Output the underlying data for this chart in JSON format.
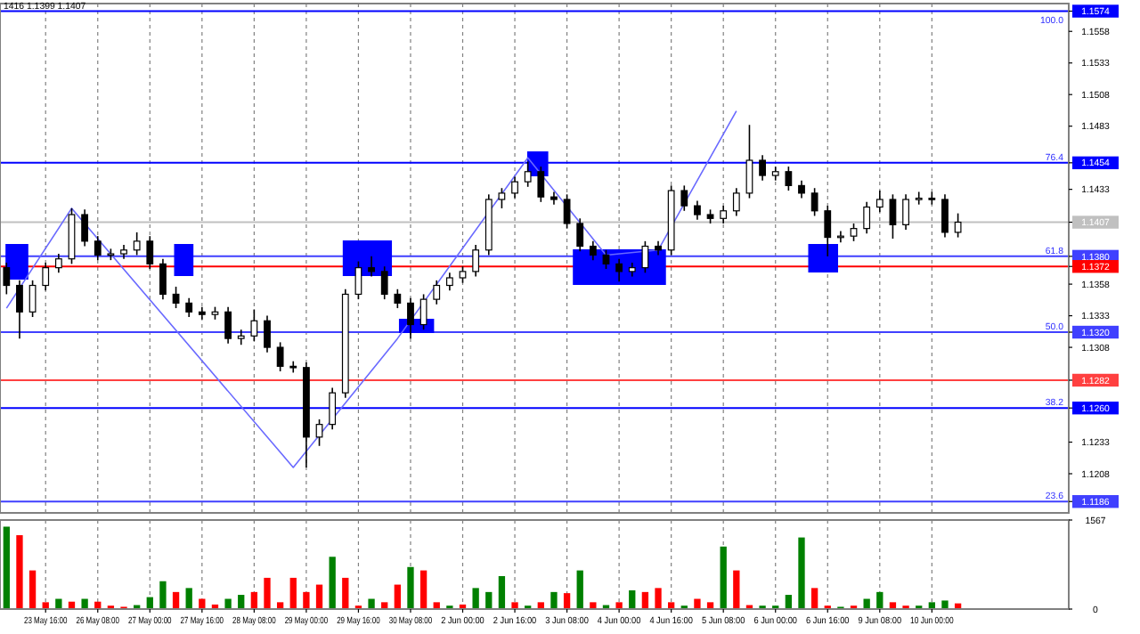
{
  "chart_data": [
    {
      "type": "candlestick",
      "title": "1416 1.1399 1.1407",
      "color": "#000000",
      "categories": [
        null,
        null,
        null,
        null,
        null,
        null,
        null,
        null,
        null,
        null,
        null,
        null,
        null,
        null,
        null,
        null,
        null,
        null,
        null,
        null,
        null,
        null,
        null,
        null,
        null,
        null,
        null,
        null,
        null,
        null,
        null,
        null,
        null,
        null,
        null,
        null,
        null,
        null,
        null,
        null,
        null,
        null,
        null,
        null,
        null,
        null,
        null,
        null,
        null,
        null,
        null,
        null,
        null,
        null,
        null,
        null,
        null,
        null,
        null,
        null,
        null,
        null,
        null,
        null,
        null,
        null,
        null,
        null,
        null,
        null,
        null,
        null,
        null,
        null,
        null,
        null,
        null,
        null,
        null,
        null,
        null,
        null
      ],
      "ohlc": [
        [
          1.1371,
          1.1375,
          1.135,
          1.1357
        ],
        [
          1.1357,
          1.1361,
          1.1315,
          1.1336
        ],
        [
          1.1336,
          1.1361,
          1.1332,
          1.1357
        ],
        [
          1.1357,
          1.1375,
          1.1353,
          1.1371
        ],
        [
          1.1371,
          1.1382,
          1.1367,
          1.1378
        ],
        [
          1.1378,
          1.1418,
          1.1374,
          1.1413
        ],
        [
          1.1413,
          1.1417,
          1.1388,
          1.1392
        ],
        [
          1.1392,
          1.1396,
          1.1377,
          1.1381
        ],
        [
          1.1381,
          1.1386,
          1.1377,
          1.1382
        ],
        [
          1.1382,
          1.1389,
          1.1378,
          1.1385
        ],
        [
          1.1385,
          1.1399,
          1.1381,
          1.1392
        ],
        [
          1.1392,
          1.1396,
          1.137,
          1.1374
        ],
        [
          1.1374,
          1.1378,
          1.1346,
          1.135
        ],
        [
          1.135,
          1.1356,
          1.1339,
          1.1343
        ],
        [
          1.1343,
          1.1347,
          1.1332,
          1.1336
        ],
        [
          1.1336,
          1.134,
          1.133,
          1.1334
        ],
        [
          1.1334,
          1.134,
          1.133,
          1.1336
        ],
        [
          1.1336,
          1.134,
          1.1311,
          1.1315
        ],
        [
          1.1315,
          1.1322,
          1.131,
          1.1317
        ],
        [
          1.1317,
          1.1338,
          1.1313,
          1.1329
        ],
        [
          1.1329,
          1.1333,
          1.1304,
          1.1308
        ],
        [
          1.1308,
          1.1312,
          1.1289,
          1.1293
        ],
        [
          1.1293,
          1.1297,
          1.1288,
          1.1292
        ],
        [
          1.1292,
          1.1296,
          1.1213,
          1.1237
        ],
        [
          1.1237,
          1.1251,
          1.123,
          1.1247
        ],
        [
          1.1247,
          1.1276,
          1.1243,
          1.1272
        ],
        [
          1.1272,
          1.1354,
          1.1268,
          1.135
        ],
        [
          1.135,
          1.1376,
          1.1346,
          1.1371
        ],
        [
          1.1371,
          1.138,
          1.1364,
          1.1368
        ],
        [
          1.1368,
          1.1372,
          1.1346,
          1.135
        ],
        [
          1.135,
          1.1354,
          1.1339,
          1.1343
        ],
        [
          1.1343,
          1.1347,
          1.1315,
          1.1326
        ],
        [
          1.1326,
          1.135,
          1.1322,
          1.1346
        ],
        [
          1.1346,
          1.1361,
          1.1342,
          1.1357
        ],
        [
          1.1357,
          1.1367,
          1.1353,
          1.1363
        ],
        [
          1.1363,
          1.1372,
          1.1359,
          1.1368
        ],
        [
          1.1368,
          1.1389,
          1.1364,
          1.1385
        ],
        [
          1.1385,
          1.1429,
          1.1381,
          1.1425
        ],
        [
          1.1425,
          1.1434,
          1.1418,
          1.143
        ],
        [
          1.143,
          1.1443,
          1.1426,
          1.1439
        ],
        [
          1.1439,
          1.1455,
          1.1435,
          1.1447
        ],
        [
          1.1447,
          1.1451,
          1.1423,
          1.1427
        ],
        [
          1.1427,
          1.1431,
          1.1421,
          1.1425
        ],
        [
          1.1425,
          1.1429,
          1.1402,
          1.1406
        ],
        [
          1.1406,
          1.141,
          1.1384,
          1.1388
        ],
        [
          1.1388,
          1.1392,
          1.1377,
          1.1381
        ],
        [
          1.1381,
          1.1385,
          1.137,
          1.1374
        ],
        [
          1.1374,
          1.1378,
          1.136,
          1.1368
        ],
        [
          1.1368,
          1.1375,
          1.1364,
          1.1371
        ],
        [
          1.1371,
          1.1392,
          1.1367,
          1.1388
        ],
        [
          1.1388,
          1.1392,
          1.1381,
          1.1385
        ],
        [
          1.1385,
          1.1436,
          1.1381,
          1.1432
        ],
        [
          1.1432,
          1.1436,
          1.1416,
          1.142
        ],
        [
          1.142,
          1.1424,
          1.1409,
          1.1413
        ],
        [
          1.1413,
          1.1417,
          1.1406,
          1.141
        ],
        [
          1.141,
          1.142,
          1.1406,
          1.1416
        ],
        [
          1.1416,
          1.1434,
          1.1412,
          1.143
        ],
        [
          1.143,
          1.1484,
          1.1426,
          1.1456
        ],
        [
          1.1456,
          1.146,
          1.144,
          1.1444
        ],
        [
          1.1444,
          1.1451,
          1.144,
          1.1447
        ],
        [
          1.1447,
          1.1451,
          1.1432,
          1.1436
        ],
        [
          1.1436,
          1.144,
          1.1426,
          1.143
        ],
        [
          1.143,
          1.1434,
          1.1412,
          1.1416
        ],
        [
          1.1416,
          1.142,
          1.138,
          1.1395
        ],
        [
          1.1395,
          1.14,
          1.1391,
          1.1396
        ],
        [
          1.1396,
          1.1406,
          1.1392,
          1.1402
        ],
        [
          1.1402,
          1.1423,
          1.1398,
          1.1419
        ],
        [
          1.1419,
          1.1432,
          1.1415,
          1.1425
        ],
        [
          1.1425,
          1.1429,
          1.1394,
          1.1405
        ],
        [
          1.1405,
          1.1429,
          1.1401,
          1.1425
        ],
        [
          1.1425,
          1.1431,
          1.1421,
          1.1426
        ],
        [
          1.1426,
          1.1431,
          1.1421,
          1.1425
        ],
        [
          1.1425,
          1.1429,
          1.1395,
          1.1399
        ],
        [
          1.1399,
          1.1414,
          1.1395,
          1.1407
        ],
        null,
        null,
        null,
        null,
        null,
        null,
        null,
        null
      ],
      "ylim": [
        1.1177,
        1.158
      ],
      "yticks": [
        {
          "value": 1.1574,
          "label": "1.1574"
        },
        1.1558,
        1.1533,
        1.1508,
        1.1483,
        {
          "value": 1.1454,
          "label": "1.1454"
        },
        1.1433,
        1.1407,
        {
          "value": 1.138,
          "label": "1.1380"
        },
        1.1372,
        1.1358,
        1.1333,
        {
          "value": 1.132,
          "label": "1.1320"
        },
        1.1308,
        1.1282,
        {
          "value": 1.126,
          "label": "1.1260"
        },
        1.1233,
        1.1208,
        1.1186
      ],
      "grid": "x",
      "tick_labels": "y",
      "ref_lines": [
        {
          "axis": "y",
          "value": 1.1574,
          "color": "#0000ff"
        },
        {
          "axis": "y",
          "value": 1.1454,
          "color": "#0000ff"
        },
        {
          "axis": "y",
          "value": 1.138,
          "color": "#4040ff"
        },
        {
          "axis": "y",
          "value": 1.132,
          "color": "#4040ff"
        },
        {
          "axis": "y",
          "value": 1.126,
          "color": "#0000ff"
        },
        {
          "axis": "y",
          "value": 1.1186,
          "color": "#4040ff"
        },
        {
          "axis": "y",
          "value": 1.1372,
          "color": "#ff0000"
        },
        {
          "axis": "y",
          "value": 1.1282,
          "color": "#ff4040"
        },
        {
          "axis": "y",
          "value": 1.1407,
          "color": "#c0c0c0"
        }
      ],
      "series": [
        {
          "type": "line",
          "color": "#6a6aff",
          "values": [
            1.1339,
            null,
            null,
            null,
            null,
            1.1418,
            null,
            null,
            null,
            null,
            null,
            null,
            null,
            null,
            null,
            null,
            null,
            null,
            null,
            null,
            null,
            null,
            1.1213,
            null,
            null,
            null,
            null,
            null,
            null,
            null,
            1.1315,
            null,
            null,
            null,
            null,
            null,
            null,
            null,
            null,
            null,
            1.1458,
            null,
            null,
            null,
            null,
            null,
            1.1381,
            null,
            null,
            null,
            1.1385,
            null,
            null,
            null,
            null,
            null,
            1.1495,
            null,
            null,
            null,
            null,
            null,
            null,
            null,
            null,
            null,
            null,
            null,
            null,
            null,
            null,
            null,
            null,
            null,
            null,
            null,
            null,
            null,
            null,
            null,
            null,
            null
          ]
        }
      ],
      "annotations": [
        {
          "text": "100.0",
          "y": 1.1574
        },
        {
          "text": "76.4",
          "y": 1.1454
        },
        {
          "text": "61.8",
          "y": 1.138
        },
        {
          "text": "50.0",
          "y": 1.132
        },
        {
          "text": "38.2",
          "y": 1.126
        },
        {
          "text": "23.6",
          "y": 1.1186
        }
      ]
    },
    {
      "type": "bar",
      "categories": [
        null,
        null,
        null,
        "23 May 16:00",
        null,
        null,
        null,
        "26 May 08:00",
        null,
        null,
        null,
        "27 May 00:00",
        null,
        null,
        null,
        "27 May 16:00",
        null,
        null,
        null,
        "28 May 08:00",
        null,
        null,
        null,
        "29 May 00:00",
        null,
        null,
        null,
        "29 May 16:00",
        null,
        null,
        null,
        "30 May 08:00",
        null,
        null,
        null,
        "2 Jun 00:00",
        null,
        null,
        null,
        "2 Jun 16:00",
        null,
        null,
        null,
        "3 Jun 08:00",
        null,
        null,
        null,
        "4 Jun 00:00",
        null,
        null,
        null,
        "4 Jun 16:00",
        null,
        null,
        null,
        "5 Jun 08:00",
        null,
        null,
        null,
        "6 Jun 00:00",
        null,
        null,
        null,
        "6 Jun 16:00",
        null,
        null,
        null,
        "9 Jun 08:00",
        null,
        null,
        null,
        "10 Jun 00:00",
        null,
        null,
        null,
        null,
        null,
        null,
        null,
        null,
        null,
        null
      ],
      "values": [
        1450,
        1300,
        680,
        120,
        180,
        130,
        180,
        130,
        60,
        40,
        70,
        210,
        490,
        300,
        370,
        180,
        80,
        180,
        250,
        300,
        550,
        120,
        550,
        300,
        430,
        920,
        550,
        60,
        180,
        120,
        430,
        740,
        680,
        120,
        60,
        80,
        370,
        300,
        580,
        120,
        60,
        120,
        300,
        280,
        680,
        120,
        70,
        120,
        330,
        300,
        370,
        120,
        60,
        180,
        120,
        1100,
        680,
        70,
        60,
        60,
        250,
        1260,
        370,
        60,
        40,
        60,
        180,
        300,
        120,
        60,
        60,
        120,
        150,
        100,
        null,
        null,
        null,
        null,
        null,
        null,
        null,
        null
      ],
      "colors": [
        "#008000",
        "#ff0000",
        "#ff0000",
        "#ff0000",
        "#008000",
        "#ff0000",
        "#008000",
        "#ff0000",
        "#ff0000",
        "#ff0000",
        "#008000",
        "#008000",
        "#008000",
        "#ff0000",
        "#008000",
        "#ff0000",
        "#ff0000",
        "#008000",
        "#008000",
        "#ff0000",
        "#ff0000",
        "#ff0000",
        "#ff0000",
        "#ff0000",
        "#ff0000",
        "#008000",
        "#ff0000",
        "#ff0000",
        "#008000",
        "#ff0000",
        "#ff0000",
        "#008000",
        "#ff0000",
        "#ff0000",
        "#008000",
        "#ff0000",
        "#008000",
        "#008000",
        "#008000",
        "#ff0000",
        "#008000",
        "#ff0000",
        "#008000",
        "#ff0000",
        "#008000",
        "#ff0000",
        "#008000",
        "#ff0000",
        "#008000",
        "#ff0000",
        "#ff0000",
        "#ff0000",
        "#008000",
        "#ff0000",
        "#ff0000",
        "#008000",
        "#ff0000",
        "#ff0000",
        "#008000",
        "#008000",
        "#008000",
        "#008000",
        "#ff0000",
        "#ff0000",
        "#008000",
        "#ff0000",
        "#008000",
        "#008000",
        "#ff0000",
        "#ff0000",
        "#008000",
        "#008000",
        "#008000",
        "#ff0000",
        null,
        null,
        null,
        null,
        null,
        null,
        null,
        null
      ],
      "ylim": [
        0,
        1567
      ],
      "yticks": [
        0,
        1567
      ],
      "grid": "x"
    }
  ]
}
